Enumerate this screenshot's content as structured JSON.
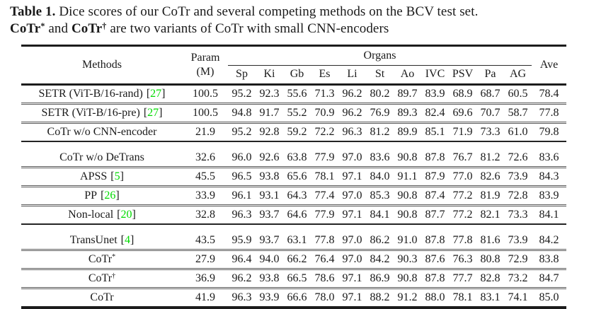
{
  "caption": {
    "label": "Table 1. ",
    "text1": "Dice scores of our CoTr and several competing methods on the BCV test set.",
    "variant1": "CoTr",
    "variant1_sup": "*",
    "mid": " and ",
    "variant2": "CoTr",
    "variant2_sup": "†",
    "text2": " are two variants of CoTr with small CNN-encoders"
  },
  "symbols": {
    "bracket_open": "[",
    "bracket_close": "]"
  },
  "colors": {
    "citation_green": "#00DB00",
    "text": "#1a1a1a",
    "rule": "#1c1c1c"
  },
  "table": {
    "header": {
      "methods": "Methods",
      "param_line1": "Param",
      "param_line2": "(M)",
      "organs": "Organs",
      "organ_columns": [
        "Sp",
        "Ki",
        "Gb",
        "Es",
        "Li",
        "St",
        "Ao",
        "IVC",
        "PSV",
        "Pa",
        "AG"
      ],
      "ave": "Ave"
    },
    "groups": [
      {
        "rows": [
          {
            "method": "SETR (ViT-B/16-rand)",
            "cite": "27",
            "param": "100.5",
            "organs": [
              "95.2",
              "92.3",
              "55.6",
              "71.3",
              "96.2",
              "80.2",
              "89.7",
              "83.9",
              "68.9",
              "68.7",
              "60.5"
            ],
            "ave": "78.4"
          },
          {
            "method": "SETR (ViT-B/16-pre)",
            "cite": "27",
            "param": "100.5",
            "organs": [
              "94.8",
              "91.7",
              "55.2",
              "70.9",
              "96.2",
              "76.9",
              "89.3",
              "82.4",
              "69.6",
              "70.7",
              "58.7"
            ],
            "ave": "77.8"
          },
          {
            "method": "CoTr w/o CNN-encoder",
            "param": "21.9",
            "organs": [
              "95.2",
              "92.8",
              "59.2",
              "72.2",
              "96.3",
              "81.2",
              "89.9",
              "85.1",
              "71.9",
              "73.3",
              "61.0"
            ],
            "ave": "79.8"
          }
        ]
      },
      {
        "rows": [
          {
            "method": "CoTr w/o DeTrans",
            "param": "32.6",
            "organs": [
              "96.0",
              "92.6",
              "63.8",
              "77.9",
              "97.0",
              "83.6",
              "90.8",
              "87.8",
              "76.7",
              "81.2",
              "72.6"
            ],
            "ave": "83.6"
          },
          {
            "method": "APSS",
            "cite": "5",
            "param": "45.5",
            "organs": [
              "96.5",
              "93.8",
              "65.6",
              "78.1",
              "97.1",
              "84.0",
              "91.1",
              "87.9",
              "77.0",
              "82.6",
              "73.9"
            ],
            "ave": "84.3"
          },
          {
            "method": "PP",
            "cite": "26",
            "param": "33.9",
            "organs": [
              "96.1",
              "93.1",
              "64.3",
              "77.4",
              "97.0",
              "85.3",
              "90.8",
              "87.4",
              "77.2",
              "81.9",
              "72.8"
            ],
            "ave": "83.9"
          },
          {
            "method": "Non-local",
            "cite": "20",
            "param": "32.8",
            "organs": [
              "96.3",
              "93.7",
              "64.6",
              "77.9",
              "97.1",
              "84.1",
              "90.8",
              "87.7",
              "77.2",
              "82.1",
              "73.3"
            ],
            "ave": "84.1"
          }
        ]
      },
      {
        "rows": [
          {
            "method": "TransUnet",
            "cite": "4",
            "param": "43.5",
            "organs": [
              "95.9",
              "93.7",
              "63.1",
              "77.8",
              "97.0",
              "86.2",
              "91.0",
              "87.8",
              "77.8",
              "81.6",
              "73.9"
            ],
            "ave": "84.2"
          },
          {
            "method": "CoTr",
            "sup": "*",
            "bold": true,
            "param": "27.9",
            "organs": [
              "96.4",
              "94.0",
              "66.2",
              "76.4",
              "97.0",
              "84.2",
              "90.3",
              "87.6",
              "76.3",
              "80.8",
              "72.9"
            ],
            "ave": "83.8"
          },
          {
            "method": "CoTr",
            "sup": "†",
            "bold": true,
            "param": "36.9",
            "organs": [
              "96.2",
              "93.8",
              "66.5",
              "78.6",
              "97.1",
              "86.9",
              "90.8",
              "87.8",
              "77.7",
              "82.8",
              "73.2"
            ],
            "ave": "84.7"
          },
          {
            "method": "CoTr",
            "bold": true,
            "param": "41.9",
            "organs": [
              "96.3",
              "93.9",
              "66.6",
              "78.0",
              "97.1",
              "88.2",
              "91.2",
              "88.0",
              "78.1",
              "83.1",
              "74.1"
            ],
            "ave": "85.0",
            "ave_bold": true
          }
        ]
      }
    ]
  }
}
